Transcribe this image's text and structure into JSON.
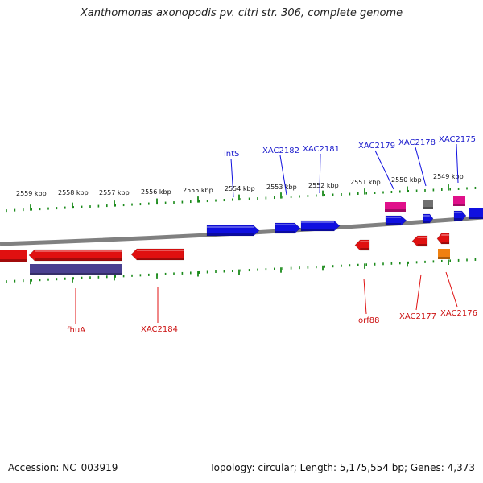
{
  "header": {
    "title": "Xanthomonas axonopodis pv. citri str. 306, complete genome"
  },
  "footer": {
    "accession": "Accession: NC_003919",
    "summary": "Topology: circular; Length: 5,175,554 bp; Genes: 4,373"
  },
  "colors": {
    "forward_gene": "#1010e0",
    "reverse_gene": "#e01010",
    "rna_pink": "#e0108a",
    "pseudo_gray": "#707070",
    "orange_feature": "#f08010",
    "purple_feature": "#4a4090",
    "backbone": "#808080",
    "tick": "#1a8a1a",
    "forward_label": "#1a1acc",
    "reverse_label": "#cc1111"
  },
  "kbp_ticks": [
    "2559 kbp",
    "2558 kbp",
    "2557 kbp",
    "2556 kbp",
    "2555 kbp",
    "2554 kbp",
    "2553 kbp",
    "2552 kbp",
    "2551 kbp",
    "2550 kbp",
    "2549 kbp"
  ],
  "forward_labels": [
    "intS",
    "XAC2182",
    "XAC2181",
    "XAC2179",
    "XAC2178",
    "XAC2175"
  ],
  "reverse_labels": [
    "fhuA",
    "XAC2184",
    "orf88",
    "XAC2177",
    "XAC2176"
  ]
}
